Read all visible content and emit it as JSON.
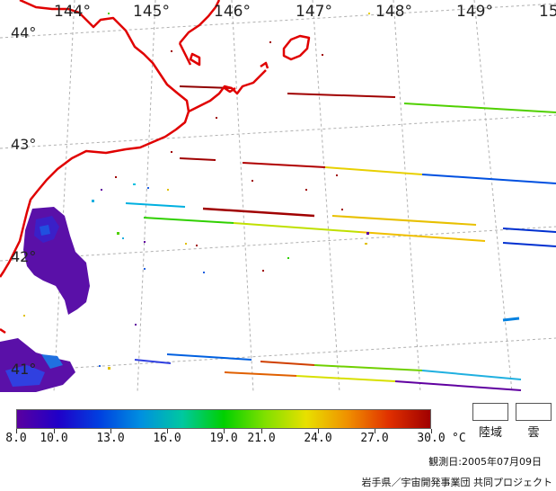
{
  "map": {
    "lon_labels": [
      "144°",
      "145°",
      "146°",
      "147°",
      "148°",
      "149°",
      "15"
    ],
    "lat_labels": [
      "44°",
      "43°",
      "42°",
      "41°"
    ]
  },
  "legend": {
    "ticks": [
      "8.0",
      "10.0",
      "13.0",
      "16.0",
      "19.0",
      "21.0",
      "24.0",
      "27.0",
      "30.0"
    ],
    "tick_values": [
      8,
      10,
      13,
      16,
      19,
      21,
      24,
      27,
      30
    ],
    "range": [
      8,
      30
    ],
    "unit": "°C",
    "colors": [
      "#5a00a0",
      "#2000c8",
      "#0040e0",
      "#0090e0",
      "#00c8a0",
      "#00d000",
      "#80e000",
      "#e8e000",
      "#f09000",
      "#e03000",
      "#a00000"
    ],
    "land_label": "陸域",
    "cloud_label": "雲"
  },
  "footer": {
    "observation_date": "観測日:2005年07月09日",
    "credit": "岩手県／宇宙開発事業団 共同プロジェクト"
  },
  "style": {
    "coastline_color": "#e00000",
    "grid_color": "#b0b0b0"
  }
}
